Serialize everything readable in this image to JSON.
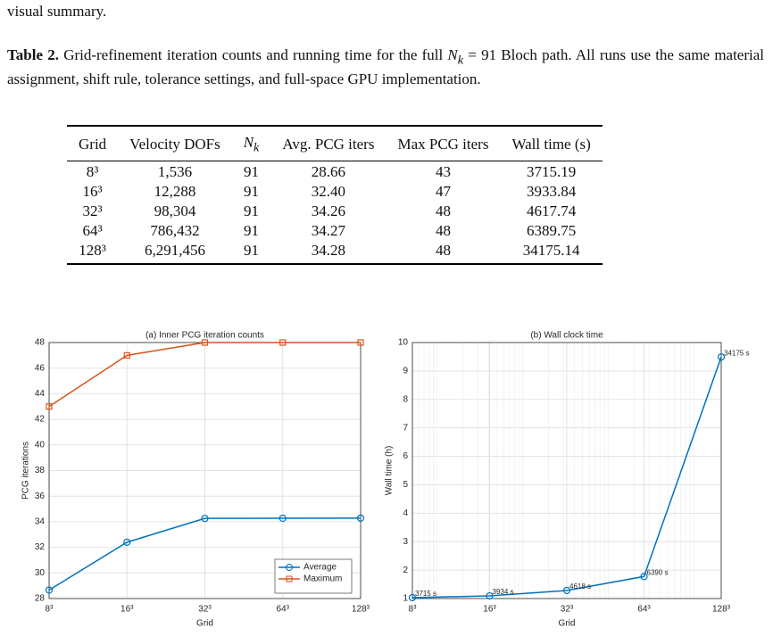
{
  "text_before": "visual summary.",
  "caption": {
    "label": "Table 2.",
    "text_1": "Grid-refinement iteration counts and running time for the full",
    "symbol": "N",
    "subscript": "k",
    "text_2": "= 91 Bloch path. All runs use the same material assignment, shift rule, tolerance settings, and full-space GPU implementation."
  },
  "table": {
    "headers": [
      "Grid",
      "Velocity DOFs",
      {
        "symbol": "N",
        "subscript": "k"
      },
      "Avg. PCG iters",
      "Max PCG iters",
      "Wall time (s)"
    ],
    "rows": [
      [
        "8³",
        "1,536",
        "91",
        "28.66",
        "43",
        "3715.19"
      ],
      [
        "16³",
        "12,288",
        "91",
        "32.40",
        "47",
        "3933.84"
      ],
      [
        "32³",
        "98,304",
        "91",
        "34.26",
        "48",
        "4617.74"
      ],
      [
        "64³",
        "786,432",
        "91",
        "34.27",
        "48",
        "6389.75"
      ],
      [
        "128³",
        "6,291,456",
        "91",
        "34.28",
        "48",
        "34175.14"
      ]
    ]
  },
  "chart_data": [
    {
      "type": "line",
      "title": "(a) Inner PCG iteration counts",
      "x_label": "Grid",
      "y_label": "PCG iterations",
      "categories": [
        "8³",
        "16³",
        "32³",
        "64³",
        "128³"
      ],
      "series": [
        {
          "name": "Average",
          "color": "#0072BD",
          "marker": "circle",
          "values": [
            28.66,
            32.4,
            34.26,
            34.27,
            34.28
          ]
        },
        {
          "name": "Maximum",
          "color": "#D95319",
          "marker": "square",
          "values": [
            43,
            47,
            48,
            48,
            48
          ]
        }
      ],
      "ylim": [
        28,
        48
      ],
      "yticks": [
        28,
        30,
        32,
        34,
        36,
        38,
        40,
        42,
        44,
        46,
        48
      ],
      "grid": true,
      "legend": "lower right"
    },
    {
      "type": "line",
      "title": "(b) Wall clock time",
      "x_label": "Grid",
      "y_label": "Wall time (h)",
      "x": [
        512,
        4096,
        32768,
        262144,
        2097152
      ],
      "xscale": "log",
      "xlim": [
        512,
        2097152
      ],
      "xticks": [
        {
          "value": 512,
          "label": "8³"
        },
        {
          "value": 4096,
          "label": "16³"
        },
        {
          "value": 32768,
          "label": "32³"
        },
        {
          "value": 262144,
          "label": "64³"
        },
        {
          "value": 2097152,
          "label": "128³"
        }
      ],
      "series": [
        {
          "color": "#0072BD",
          "marker": "circle",
          "values": [
            1.032,
            1.0927,
            1.2827,
            1.7749,
            9.4931
          ],
          "value_labels": [
            "3715 s",
            "3934 s",
            "4618 s",
            "6390 s",
            "34175 s"
          ]
        }
      ],
      "ylim": [
        1,
        10
      ],
      "yticks": [
        1,
        2,
        3,
        4,
        5,
        6,
        7,
        8,
        9,
        10
      ],
      "grid": true,
      "minor_grid": true
    }
  ]
}
